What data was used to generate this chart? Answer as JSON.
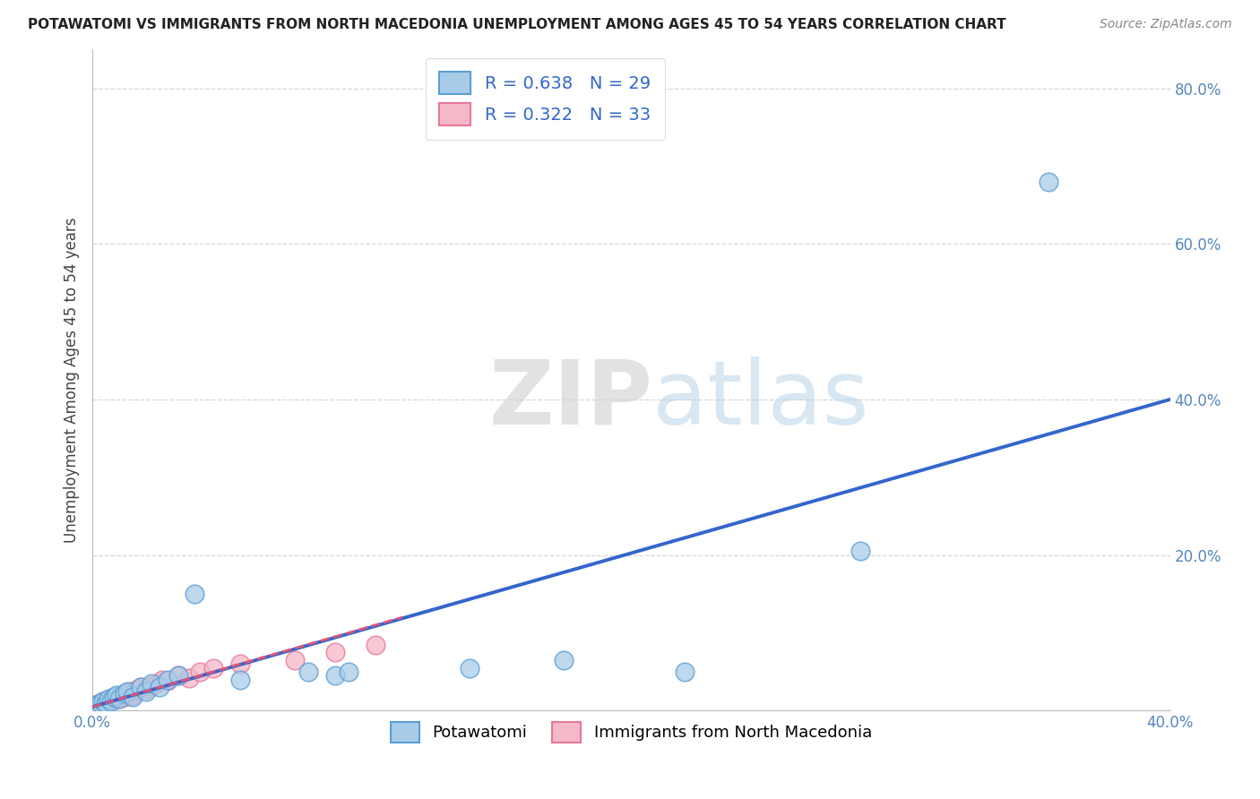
{
  "title": "POTAWATOMI VS IMMIGRANTS FROM NORTH MACEDONIA UNEMPLOYMENT AMONG AGES 45 TO 54 YEARS CORRELATION CHART",
  "source": "Source: ZipAtlas.com",
  "ylabel": "Unemployment Among Ages 45 to 54 years",
  "xlim": [
    0,
    0.4
  ],
  "ylim": [
    0,
    0.85
  ],
  "xticks": [
    0.0,
    0.05,
    0.1,
    0.15,
    0.2,
    0.25,
    0.3,
    0.35,
    0.4
  ],
  "yticks": [
    0.0,
    0.2,
    0.4,
    0.6,
    0.8
  ],
  "legend_r1": "R = 0.638",
  "legend_n1": "N = 29",
  "legend_r2": "R = 0.322",
  "legend_n2": "N = 33",
  "color_blue_fill": "#a8cce8",
  "color_pink_fill": "#f5b8c8",
  "color_blue_edge": "#5a9fd4",
  "color_pink_edge": "#e87898",
  "color_blue_line": "#3366cc",
  "color_pink_line": "#dd5577",
  "background_color": "#ffffff",
  "grid_color": "#cccccc",
  "tick_color": "#5588bb",
  "legend_text_color": "#3366cc",
  "blue_scatter_x": [
    0.001,
    0.002,
    0.003,
    0.004,
    0.005,
    0.006,
    0.007,
    0.008,
    0.009,
    0.01,
    0.012,
    0.013,
    0.015,
    0.018,
    0.02,
    0.022,
    0.025,
    0.028,
    0.032,
    0.038,
    0.055,
    0.08,
    0.09,
    0.095,
    0.14,
    0.175,
    0.22,
    0.285,
    0.355
  ],
  "blue_scatter_y": [
    0.005,
    0.008,
    0.01,
    0.012,
    0.01,
    0.015,
    0.012,
    0.018,
    0.02,
    0.015,
    0.022,
    0.025,
    0.018,
    0.03,
    0.025,
    0.035,
    0.03,
    0.04,
    0.045,
    0.15,
    0.04,
    0.05,
    0.045,
    0.05,
    0.055,
    0.065,
    0.05,
    0.205,
    0.68
  ],
  "pink_scatter_x": [
    0.001,
    0.002,
    0.003,
    0.004,
    0.004,
    0.005,
    0.006,
    0.007,
    0.007,
    0.008,
    0.009,
    0.01,
    0.011,
    0.012,
    0.013,
    0.014,
    0.015,
    0.016,
    0.017,
    0.018,
    0.02,
    0.022,
    0.024,
    0.026,
    0.028,
    0.032,
    0.036,
    0.04,
    0.045,
    0.055,
    0.075,
    0.09,
    0.105
  ],
  "pink_scatter_y": [
    0.005,
    0.008,
    0.008,
    0.01,
    0.012,
    0.01,
    0.012,
    0.014,
    0.015,
    0.016,
    0.018,
    0.015,
    0.02,
    0.018,
    0.022,
    0.025,
    0.02,
    0.025,
    0.028,
    0.03,
    0.028,
    0.032,
    0.035,
    0.04,
    0.038,
    0.045,
    0.042,
    0.05,
    0.055,
    0.06,
    0.065,
    0.075,
    0.085
  ],
  "blue_line_x": [
    0.0,
    0.4
  ],
  "blue_line_y": [
    0.005,
    0.4
  ],
  "pink_line_x": [
    0.0,
    0.115
  ],
  "pink_line_y": [
    0.005,
    0.12
  ]
}
